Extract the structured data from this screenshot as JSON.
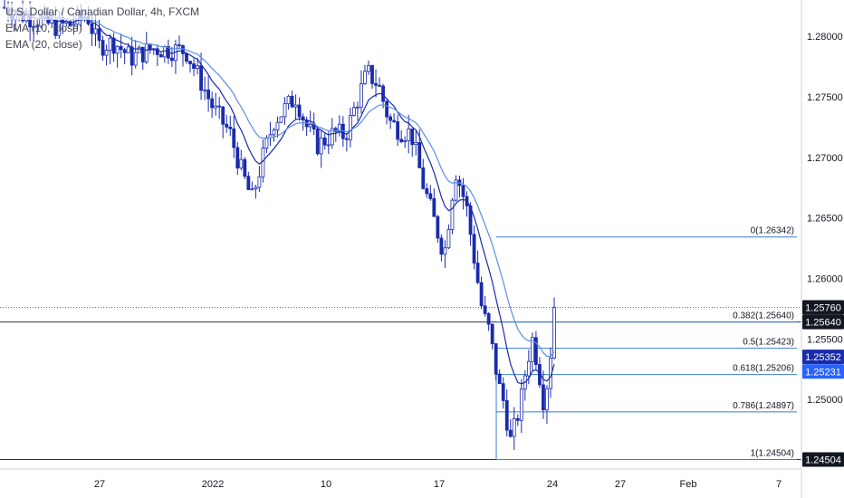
{
  "legend": {
    "title": "U.S. Dollar / Canadian Dollar, 4h, FXCM",
    "ema10": "EMA (10, close)",
    "ema20": "EMA (20, close)"
  },
  "colors": {
    "candle": "#1a2bab",
    "ema10": "#1a2bab",
    "ema20": "#5a8ee8",
    "fib": "#3a7bd5",
    "price_line": "#000000",
    "axis_text": "#131722",
    "badge_dark": "#131722",
    "badge_ema10": "#1a2bab",
    "badge_ema20": "#2962ff"
  },
  "chart_data": {
    "type": "candlestick",
    "title": "U.S. Dollar / Canadian Dollar, 4h, FXCM",
    "ylim": [
      1.24425,
      1.283
    ],
    "y_ticks": [
      "1.28000",
      "1.27500",
      "1.27000",
      "1.26500",
      "1.26000",
      "1.25500",
      "1.25000"
    ],
    "x_ticks": [
      "27",
      "2022",
      "10",
      "17",
      "24",
      "27",
      "Feb",
      "7"
    ],
    "last_price": "1.25760",
    "badges": [
      {
        "label": "1.25760",
        "style": "dark",
        "value": 1.2576
      },
      {
        "label": "1.25640",
        "style": "dark",
        "value": 1.2564
      },
      {
        "label": "1.25352",
        "style": "ema10",
        "value": 1.25352
      },
      {
        "label": "1.25231",
        "style": "ema20",
        "value": 1.25231
      },
      {
        "label": "1.24504",
        "style": "dark",
        "value": 1.24504
      }
    ],
    "fib_levels": [
      {
        "label": "0(1.26342)",
        "value": 1.26342
      },
      {
        "label": "0.382(1.25640)",
        "value": 1.2564
      },
      {
        "label": "0.5(1.25423)",
        "value": 1.25423
      },
      {
        "label": "0.618(1.25206)",
        "value": 1.25206
      },
      {
        "label": "0.786(1.24897)",
        "value": 1.24897
      },
      {
        "label": "1(1.24504)",
        "value": 1.24504
      }
    ],
    "close_anchors": [
      {
        "t": 0,
        "v": 1.2824
      },
      {
        "t": 0.03,
        "v": 1.2818
      },
      {
        "t": 0.06,
        "v": 1.2814
      },
      {
        "t": 0.09,
        "v": 1.2808
      },
      {
        "t": 0.12,
        "v": 1.281
      },
      {
        "t": 0.15,
        "v": 1.2818
      },
      {
        "t": 0.17,
        "v": 1.2792
      },
      {
        "t": 0.2,
        "v": 1.2795
      },
      {
        "t": 0.23,
        "v": 1.2782
      },
      {
        "t": 0.27,
        "v": 1.279
      },
      {
        "t": 0.33,
        "v": 1.2788
      },
      {
        "t": 0.36,
        "v": 1.276
      },
      {
        "t": 0.38,
        "v": 1.274
      },
      {
        "t": 0.41,
        "v": 1.272
      },
      {
        "t": 0.43,
        "v": 1.269
      },
      {
        "t": 0.45,
        "v": 1.2665
      },
      {
        "t": 0.47,
        "v": 1.27
      },
      {
        "t": 0.49,
        "v": 1.273
      },
      {
        "t": 0.51,
        "v": 1.274
      },
      {
        "t": 0.53,
        "v": 1.275
      },
      {
        "t": 0.55,
        "v": 1.2725
      },
      {
        "t": 0.57,
        "v": 1.271
      },
      {
        "t": 0.6,
        "v": 1.272
      },
      {
        "t": 0.62,
        "v": 1.2718
      },
      {
        "t": 0.64,
        "v": 1.2745
      },
      {
        "t": 0.66,
        "v": 1.277
      },
      {
        "t": 0.68,
        "v": 1.276
      },
      {
        "t": 0.7,
        "v": 1.273
      },
      {
        "t": 0.72,
        "v": 1.2722
      },
      {
        "t": 0.74,
        "v": 1.272
      },
      {
        "t": 0.76,
        "v": 1.268
      },
      {
        "t": 0.78,
        "v": 1.265
      },
      {
        "t": 0.8,
        "v": 1.262
      },
      {
        "t": 0.82,
        "v": 1.269
      },
      {
        "t": 0.84,
        "v": 1.266
      },
      {
        "t": 0.86,
        "v": 1.26
      },
      {
        "t": 0.87,
        "v": 1.257
      },
      {
        "t": 0.88,
        "v": 1.256
      },
      {
        "t": 0.89,
        "v": 1.2535
      },
      {
        "t": 0.9,
        "v": 1.251
      },
      {
        "t": 0.91,
        "v": 1.2495
      },
      {
        "t": 0.92,
        "v": 1.2465
      },
      {
        "t": 0.93,
        "v": 1.248
      },
      {
        "t": 0.94,
        "v": 1.25
      },
      {
        "t": 0.95,
        "v": 1.253
      },
      {
        "t": 0.96,
        "v": 1.255
      },
      {
        "t": 0.97,
        "v": 1.253
      },
      {
        "t": 0.98,
        "v": 1.25
      },
      {
        "t": 0.99,
        "v": 1.252
      },
      {
        "t": 1.0,
        "v": 1.2576
      }
    ]
  }
}
